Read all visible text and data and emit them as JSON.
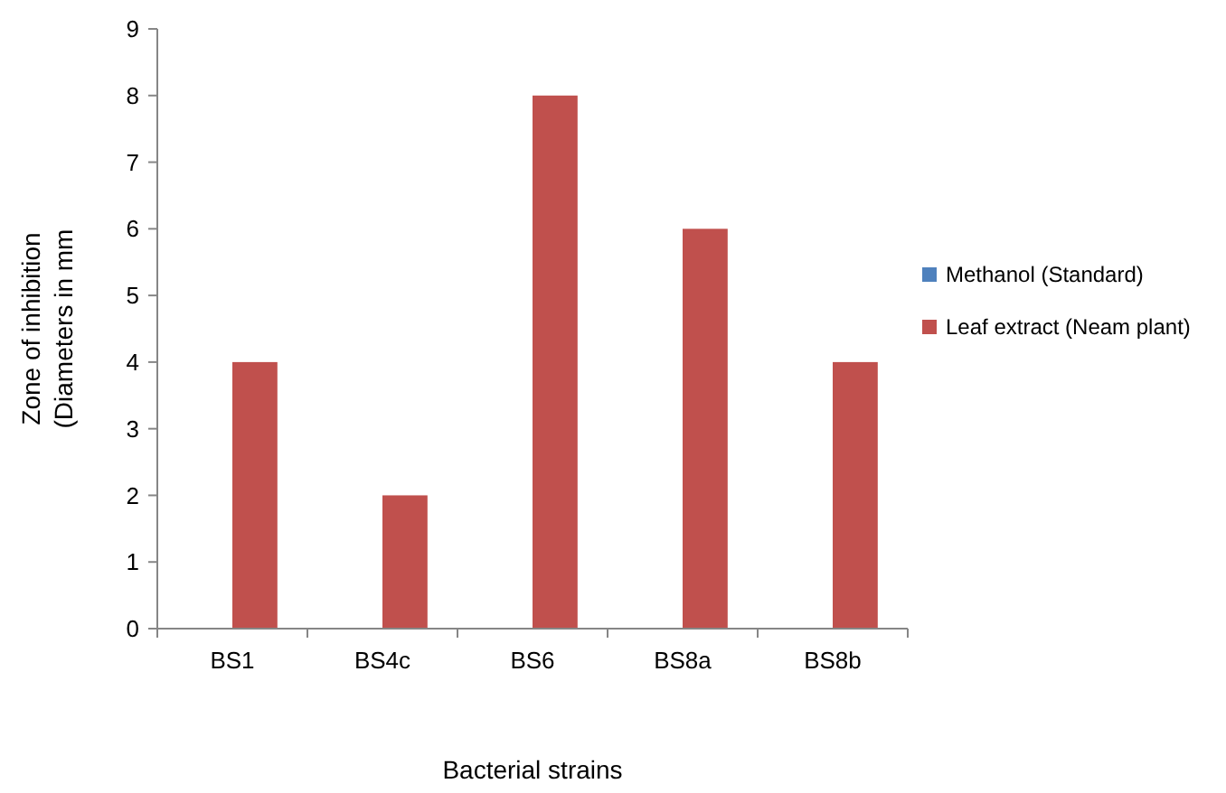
{
  "chart_data": {
    "type": "bar",
    "xlabel": "Bacterial strains",
    "ylabel": "Zone of inhibition\n(Diameters in mm",
    "categories": [
      "BS1",
      "BS4c",
      "BS6",
      "BS8a",
      "BS8b"
    ],
    "series": [
      {
        "name": "Methanol (Standard)",
        "color": "#4f81bd",
        "values": [
          0,
          0,
          0,
          0,
          0
        ]
      },
      {
        "name": "Leaf extract (Neam plant)",
        "color": "#c0504d",
        "values": [
          4,
          2,
          8,
          6,
          4
        ]
      }
    ],
    "ylim": [
      0,
      9
    ],
    "yticks": [
      0,
      1,
      2,
      3,
      4,
      5,
      6,
      7,
      8,
      9
    ],
    "grid": false,
    "legend": "right"
  }
}
